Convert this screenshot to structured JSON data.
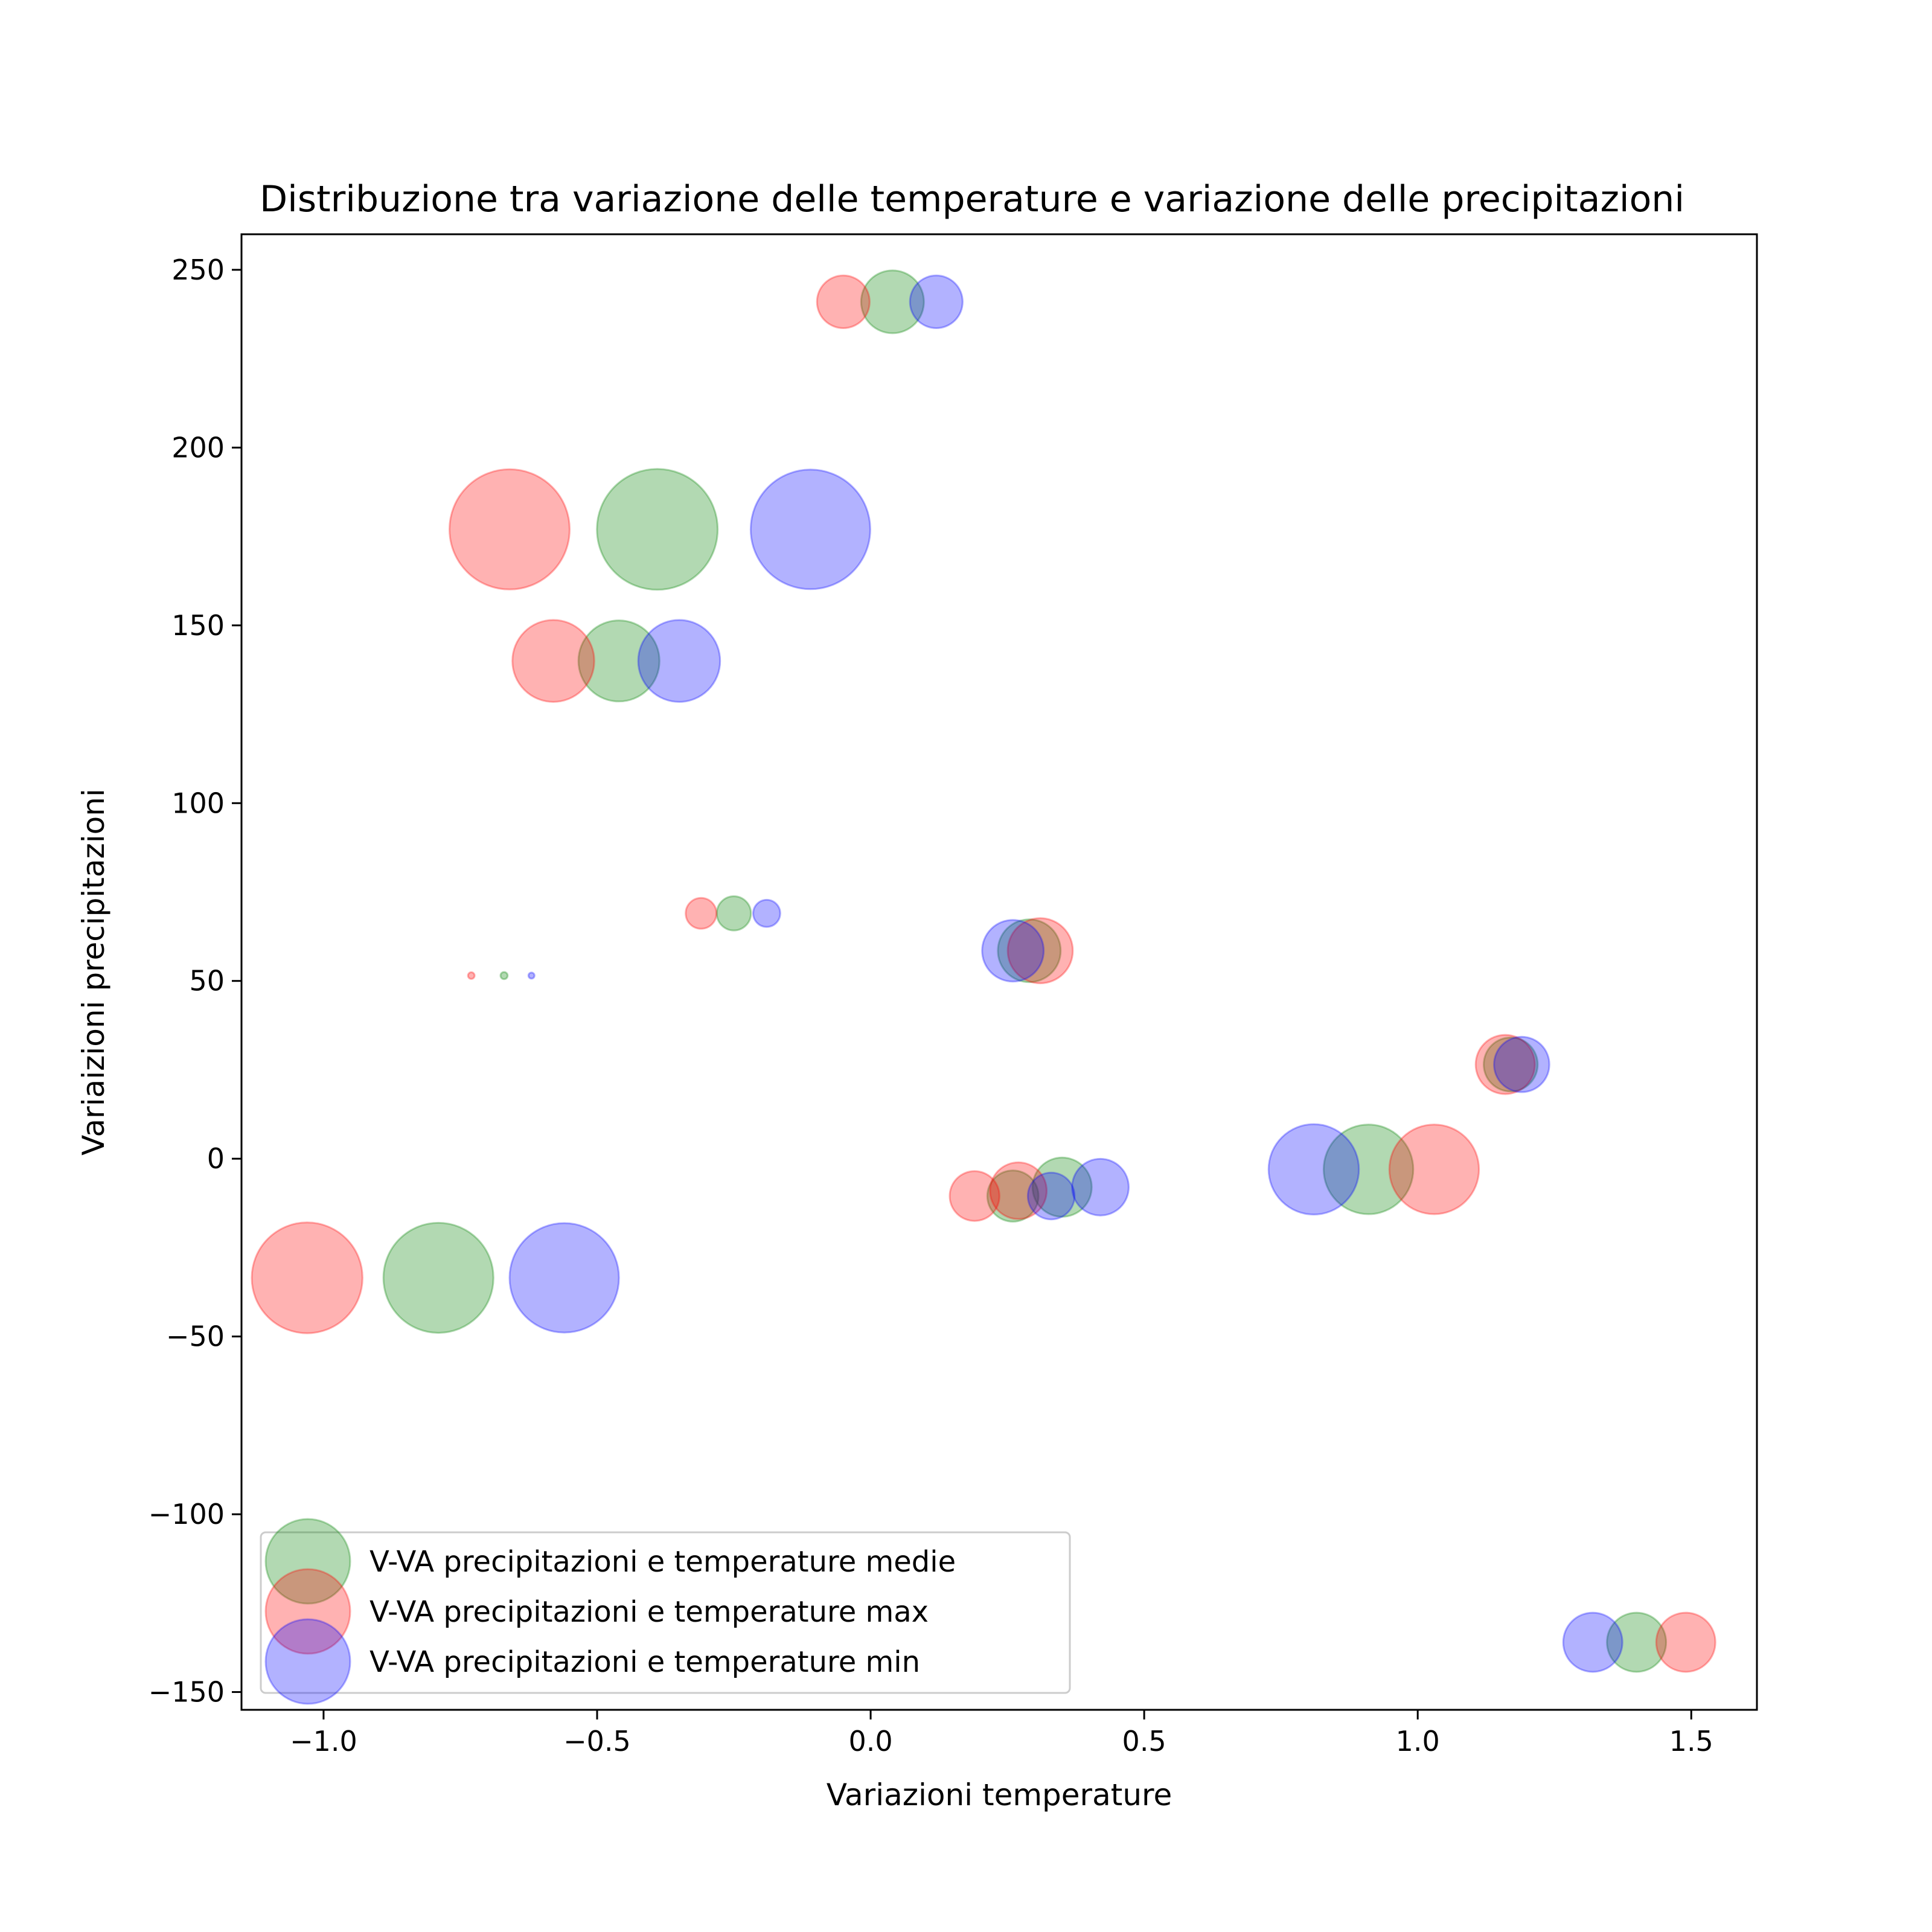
{
  "chart_data": {
    "type": "scatter",
    "title": "Distribuzione tra variazione delle temperature e variazione delle precipitazioni",
    "xlabel": "Variazioni temperature",
    "ylabel": "Variaizioni precipitazioni",
    "xlim": [
      -1.15,
      1.62
    ],
    "ylim": [
      -155,
      260
    ],
    "xticks": [
      -1.0,
      -0.5,
      0.0,
      0.5,
      1.0,
      1.5
    ],
    "xtick_labels": [
      "−1.0",
      "−0.5",
      "0.0",
      "0.5",
      "1.0",
      "1.5"
    ],
    "yticks": [
      -150,
      -100,
      -50,
      0,
      50,
      100,
      150,
      200,
      250
    ],
    "ytick_labels": [
      "−150",
      "−100",
      "−50",
      "0",
      "50",
      "100",
      "150",
      "200",
      "250"
    ],
    "legend_position": "lower-left",
    "grid": false,
    "series": [
      {
        "name": "V-VA precipitazioni e temperature medie",
        "color": "#008000",
        "points": [
          {
            "x": 0.04,
            "y": 241,
            "size": 0.27
          },
          {
            "x": -0.39,
            "y": 177,
            "size": 1.0
          },
          {
            "x": -0.46,
            "y": 140,
            "size": 0.45
          },
          {
            "x": -0.25,
            "y": 69,
            "size": 0.08
          },
          {
            "x": -0.67,
            "y": 51.5,
            "size": 0.0035
          },
          {
            "x": 0.29,
            "y": 58.5,
            "size": 0.27
          },
          {
            "x": 1.17,
            "y": 26.5,
            "size": 0.2
          },
          {
            "x": 0.91,
            "y": -3,
            "size": 0.55
          },
          {
            "x": 0.35,
            "y": -8,
            "size": 0.24
          },
          {
            "x": 0.26,
            "y": -10.5,
            "size": 0.18
          },
          {
            "x": -0.79,
            "y": -33.5,
            "size": 0.83
          },
          {
            "x": 1.4,
            "y": -136,
            "size": 0.24
          }
        ]
      },
      {
        "name": "V-VA precipitazioni e temperature max",
        "color": "#ff0000",
        "points": [
          {
            "x": -0.05,
            "y": 241,
            "size": 0.19
          },
          {
            "x": -0.66,
            "y": 177,
            "size": 0.99
          },
          {
            "x": -0.58,
            "y": 140,
            "size": 0.46
          },
          {
            "x": -0.31,
            "y": 69,
            "size": 0.065
          },
          {
            "x": -0.73,
            "y": 51.5,
            "size": 0.003
          },
          {
            "x": 0.31,
            "y": 58.5,
            "size": 0.29
          },
          {
            "x": 1.16,
            "y": 26.5,
            "size": 0.24
          },
          {
            "x": 1.03,
            "y": -3,
            "size": 0.55
          },
          {
            "x": 0.27,
            "y": -9,
            "size": 0.22
          },
          {
            "x": 0.19,
            "y": -10.5,
            "size": 0.17
          },
          {
            "x": -1.03,
            "y": -33.5,
            "size": 0.84
          },
          {
            "x": 1.49,
            "y": -136,
            "size": 0.24
          }
        ]
      },
      {
        "name": "V-VA precipitazioni e temperature min",
        "color": "#0000ff",
        "points": [
          {
            "x": 0.12,
            "y": 241,
            "size": 0.19
          },
          {
            "x": -0.11,
            "y": 177,
            "size": 0.98
          },
          {
            "x": -0.35,
            "y": 140,
            "size": 0.46
          },
          {
            "x": -0.19,
            "y": 69,
            "size": 0.05
          },
          {
            "x": -0.62,
            "y": 51.5,
            "size": 0.0025
          },
          {
            "x": 0.26,
            "y": 58.5,
            "size": 0.26
          },
          {
            "x": 1.19,
            "y": 26.5,
            "size": 0.21
          },
          {
            "x": 0.81,
            "y": -3,
            "size": 0.56
          },
          {
            "x": 0.42,
            "y": -8,
            "size": 0.22
          },
          {
            "x": 0.33,
            "y": -10.5,
            "size": 0.15
          },
          {
            "x": -0.56,
            "y": -33.5,
            "size": 0.82
          },
          {
            "x": 1.32,
            "y": -136,
            "size": 0.24
          }
        ]
      }
    ],
    "legend_order": [
      0,
      1,
      2
    ]
  }
}
